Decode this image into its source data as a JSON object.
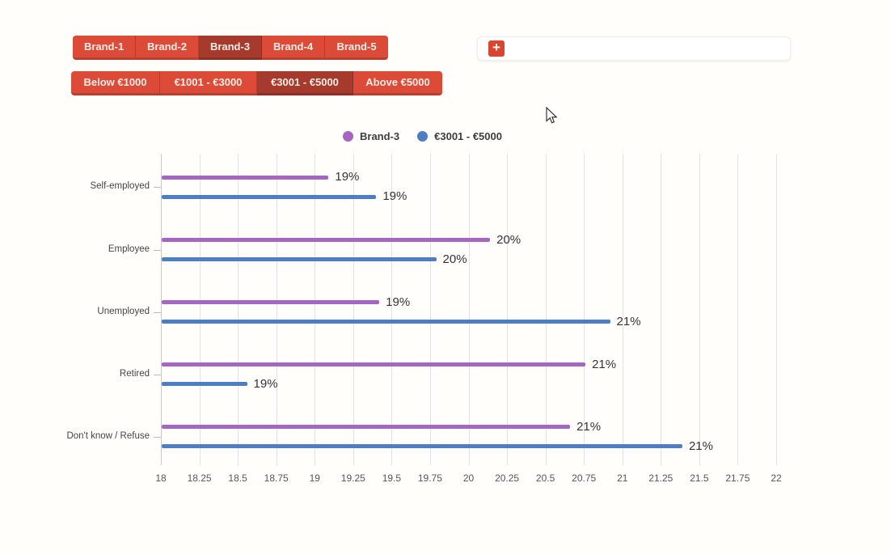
{
  "brand_tabs": {
    "labels": [
      "Brand-1",
      "Brand-2",
      "Brand-3",
      "Brand-4",
      "Brand-5"
    ],
    "selected": "Brand-3"
  },
  "price_tabs": {
    "labels": [
      "Below €1000",
      "€1001 - €3000",
      "€3001 - €5000",
      "Above €5000"
    ],
    "selected": "€3001 - €5000"
  },
  "add_panel": {
    "add_button_label": "+"
  },
  "colors": {
    "button_red": "#dc4a38",
    "button_selected_red": "#a63a2c",
    "add_button_red": "#d9452f",
    "series_brand3": "#a664c3",
    "series_price": "#4d7ec4"
  },
  "legend": [
    {
      "label": "Brand-3",
      "color": "#a664c3"
    },
    {
      "label": "€3001 - €5000",
      "color": "#4d7ec4"
    }
  ],
  "chart_data": {
    "type": "bar",
    "orientation": "horizontal",
    "title": "",
    "categories": [
      "Self-employed",
      "Employee",
      "Unemployed",
      "Retired",
      "Don't know / Refuse"
    ],
    "series": [
      {
        "name": "Brand-3",
        "color": "#a664c3",
        "values": [
          19.09,
          20.14,
          19.42,
          20.76,
          20.66
        ],
        "labels": [
          "19%",
          "20%",
          "19%",
          "21%",
          "21%"
        ]
      },
      {
        "name": "€3001 - €5000",
        "color": "#4d7ec4",
        "values": [
          19.4,
          19.79,
          20.92,
          18.56,
          21.39
        ],
        "labels": [
          "19%",
          "20%",
          "21%",
          "19%",
          "21%"
        ]
      }
    ],
    "xlim": [
      18,
      22
    ],
    "x_tick_step": 0.25,
    "x_ticks": [
      "18",
      "18.25",
      "18.5",
      "18.75",
      "19",
      "19.25",
      "19.5",
      "19.75",
      "20",
      "20.25",
      "20.5",
      "20.75",
      "21",
      "21.25",
      "21.5",
      "21.75",
      "22"
    ],
    "grid": true,
    "legend_position": "top"
  }
}
